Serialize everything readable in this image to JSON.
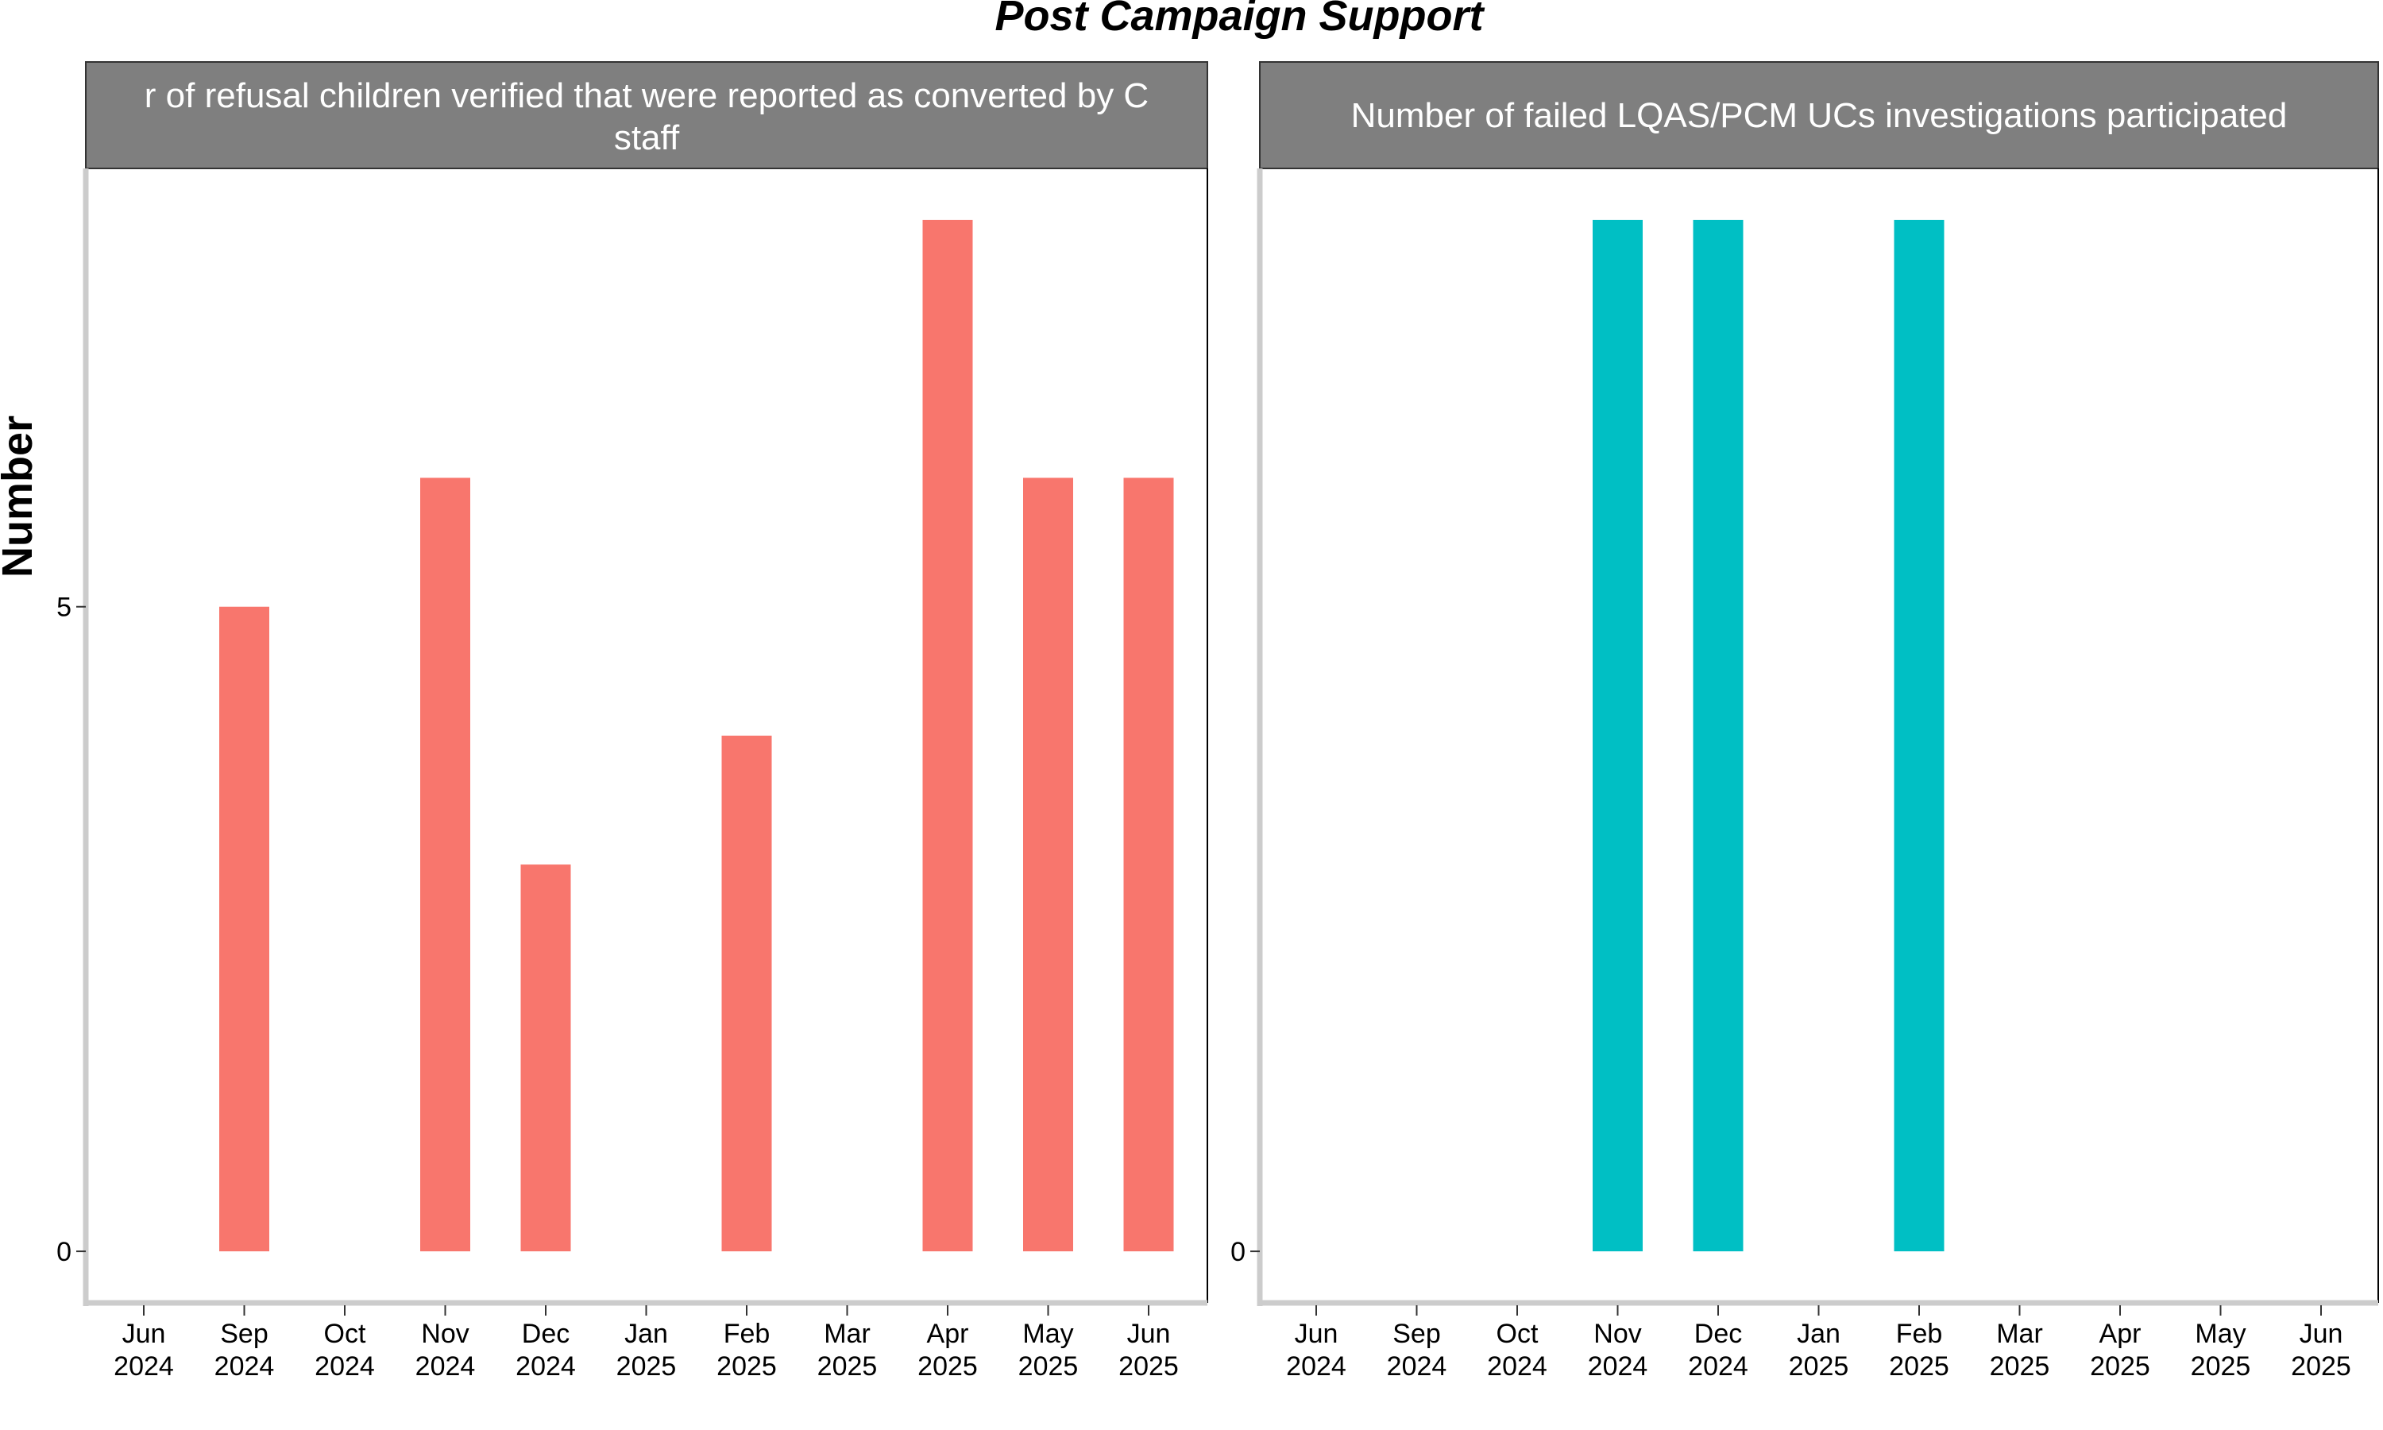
{
  "chart_data": {
    "type": "bar",
    "title": "Post Campaign Support",
    "ylabel": "Number",
    "xlabel": "",
    "ylim": [
      -0.4,
      8.4
    ],
    "y_ticks": [
      "0",
      "5"
    ],
    "categories": [
      [
        "Jun",
        "2024"
      ],
      [
        "Sep",
        "2024"
      ],
      [
        "Oct",
        "2024"
      ],
      [
        "Nov",
        "2024"
      ],
      [
        "Dec",
        "2024"
      ],
      [
        "Jan",
        "2025"
      ],
      [
        "Feb",
        "2025"
      ],
      [
        "Mar",
        "2025"
      ],
      [
        "Apr",
        "2025"
      ],
      [
        "May",
        "2025"
      ],
      [
        "Jun",
        "2025"
      ]
    ],
    "grid": false,
    "legend": "none",
    "panels": [
      {
        "strip_lines": [
          "r of refusal children verified that were reported as converted by C",
          "staff"
        ],
        "color": "#F8766D",
        "values": [
          0,
          5,
          0,
          6,
          3,
          0,
          4,
          0,
          8,
          6,
          6
        ]
      },
      {
        "strip_lines": [
          "Number of failed LQAS/PCM UCs investigations participated"
        ],
        "color": "#00BFC4",
        "values": [
          0,
          0,
          0,
          8,
          8,
          0,
          8,
          0,
          0,
          0,
          0
        ]
      }
    ],
    "colors": {
      "strip_fill": "#7f7f7f",
      "axis": "#cccccc"
    }
  }
}
